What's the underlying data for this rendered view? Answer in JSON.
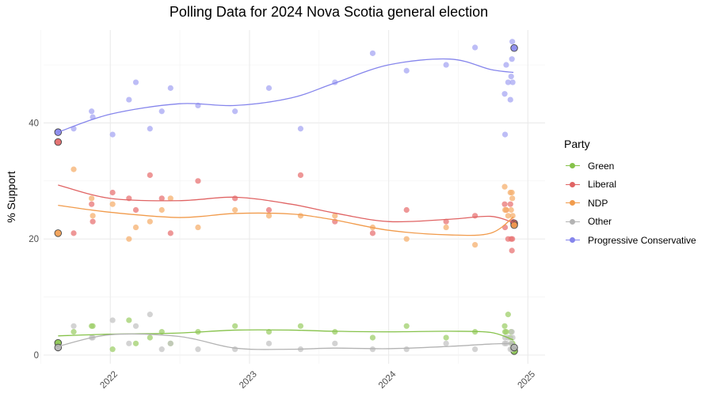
{
  "chart_data": {
    "type": "scatter",
    "title": "Polling Data for 2024 Nova Scotia general election",
    "xlabel": "",
    "ylabel": "% Support",
    "xlim": [
      "2021-07-10",
      "2025-02-15"
    ],
    "ylim": [
      -1.5,
      56
    ],
    "x_ticks": [
      "2022",
      "2023",
      "2024",
      "2025"
    ],
    "y_ticks": [
      0,
      20,
      40
    ],
    "grid": true,
    "legend_title": "Party",
    "legend_position": "right",
    "parties": [
      "Green",
      "Liberal",
      "NDP",
      "Other",
      "Progressive  Conservative"
    ],
    "point_colors": {
      "Green": "#9fcf6b",
      "Liberal": "#e87474",
      "NDP": "#f5b06f",
      "Other": "#c4c4c4",
      "Progressive  Conservative": "#a7a7f3"
    },
    "line_colors": {
      "Green": "#86c24a",
      "Liberal": "#e06464",
      "NDP": "#f19b4c",
      "Other": "#b3b3b3",
      "Progressive  Conservative": "#8585ec"
    },
    "polls": [
      {
        "date": "2021-08-17",
        "result": true,
        "Green": 2.1,
        "Liberal": 36.7,
        "NDP": 21.0,
        "Other": 1.3,
        "Progressive  Conservative": 38.4
      },
      {
        "date": "2021-09-27",
        "Green": 4,
        "Liberal": 21,
        "NDP": 32,
        "Other": 5,
        "Progressive  Conservative": 39
      },
      {
        "date": "2021-11-13",
        "Green": 5,
        "Liberal": 26,
        "NDP": 27,
        "Other": 3,
        "Progressive  Conservative": 42
      },
      {
        "date": "2021-11-16",
        "Green": 5,
        "Liberal": 23,
        "NDP": 24,
        "Other": 3,
        "Progressive  Conservative": 41
      },
      {
        "date": "2022-01-07",
        "Green": 1,
        "Liberal": 28,
        "NDP": 26,
        "Other": 6,
        "Progressive  Conservative": 38
      },
      {
        "date": "2022-02-19",
        "Green": 6,
        "Liberal": 27,
        "NDP": 20,
        "Other": 2,
        "Progressive  Conservative": 44
      },
      {
        "date": "2022-03-09",
        "Green": 2,
        "Liberal": 25,
        "NDP": 22,
        "Other": 5,
        "Progressive  Conservative": 47
      },
      {
        "date": "2022-04-15",
        "Green": 3,
        "Liberal": 31,
        "NDP": 23,
        "Other": 7,
        "Progressive  Conservative": 39
      },
      {
        "date": "2022-05-16",
        "Green": 4,
        "Liberal": 27,
        "NDP": 25,
        "Other": 1,
        "Progressive  Conservative": 42
      },
      {
        "date": "2022-06-08",
        "Green": 2,
        "Liberal": 21,
        "NDP": 27,
        "Other": 2,
        "Progressive  Conservative": 46
      },
      {
        "date": "2022-08-19",
        "Green": 4,
        "Liberal": 30,
        "NDP": 22,
        "Other": 1,
        "Progressive  Conservative": 43
      },
      {
        "date": "2022-11-24",
        "Green": 5,
        "Liberal": 27,
        "NDP": 25,
        "Other": 1,
        "Progressive  Conservative": 42
      },
      {
        "date": "2023-02-21",
        "Green": 4,
        "Liberal": 25,
        "NDP": 24,
        "Other": 2,
        "Progressive  Conservative": 46
      },
      {
        "date": "2023-05-15",
        "Green": 5,
        "Liberal": 31,
        "NDP": 24,
        "Other": 1,
        "Progressive  Conservative": 39
      },
      {
        "date": "2023-08-13",
        "Green": 4,
        "Liberal": 23,
        "NDP": 24,
        "Other": 2,
        "Progressive  Conservative": 47
      },
      {
        "date": "2023-11-20",
        "Green": 3,
        "Liberal": 21,
        "NDP": 22,
        "Other": 1,
        "Progressive  Conservative": 52
      },
      {
        "date": "2024-02-17",
        "Green": 5,
        "Liberal": 25,
        "NDP": 20,
        "Other": 1,
        "Progressive  Conservative": 49
      },
      {
        "date": "2024-05-31",
        "Green": 3,
        "Liberal": 23,
        "NDP": 22,
        "Other": 2,
        "Progressive  Conservative": 50
      },
      {
        "date": "2024-08-15",
        "Green": 4,
        "Liberal": 24,
        "NDP": 19,
        "Other": 1,
        "Progressive  Conservative": 53
      },
      {
        "date": "2024-11-01",
        "Green": 5,
        "Liberal": 26,
        "NDP": 29,
        "Other": 2,
        "Progressive  Conservative": 45
      },
      {
        "date": "2024-11-02",
        "Green": 4,
        "Liberal": 22,
        "NDP": 25,
        "Other": 3,
        "Progressive  Conservative": 38
      },
      {
        "date": "2024-11-05",
        "Green": 4,
        "Liberal": 25,
        "NDP": 25,
        "Other": 2,
        "Progressive  Conservative": 50
      },
      {
        "date": "2024-11-10",
        "Green": 7,
        "Liberal": 20,
        "NDP": 24,
        "Other": 3,
        "Progressive  Conservative": 47
      },
      {
        "date": "2024-11-16",
        "Green": 3,
        "Liberal": 26,
        "NDP": 28,
        "Other": 1,
        "Progressive  Conservative": 44
      },
      {
        "date": "2024-11-18",
        "Green": 4,
        "Liberal": 20,
        "NDP": 25,
        "Other": 2,
        "Progressive  Conservative": 48
      },
      {
        "date": "2024-11-20",
        "Green": 2,
        "Liberal": 18,
        "NDP": 28,
        "Other": 4,
        "Progressive  Conservative": 51
      },
      {
        "date": "2024-11-21",
        "Green": 1,
        "Liberal": 20,
        "NDP": 27,
        "Other": 1,
        "Progressive  Conservative": 54
      },
      {
        "date": "2024-11-22",
        "Green": 2,
        "Liberal": 23,
        "NDP": 24,
        "Other": 3,
        "Progressive  Conservative": 47
      },
      {
        "date": "2024-11-26",
        "result": true,
        "Green": 0.7,
        "Liberal": 22.7,
        "NDP": 22.4,
        "Other": 1.3,
        "Progressive  Conservative": 52.9
      }
    ],
    "trends": {
      "dates": [
        "2021-08-17",
        "2022-01-01",
        "2022-07-01",
        "2022-11-24",
        "2023-04-20",
        "2023-08-10",
        "2024-01-01",
        "2024-06-10",
        "2024-09-25",
        "2024-11-24"
      ],
      "Green": [
        3.3,
        3.6,
        3.8,
        4.3,
        4.3,
        4.1,
        4.0,
        4.1,
        3.9,
        2.6
      ],
      "Liberal": [
        29.3,
        27.0,
        26.6,
        27.2,
        26.0,
        24.5,
        23.0,
        23.4,
        23.9,
        22.8
      ],
      "NDP": [
        25.8,
        24.6,
        23.7,
        24.4,
        24.3,
        23.3,
        21.5,
        20.7,
        21.0,
        23.8
      ],
      "Other": [
        1.5,
        3.5,
        3.2,
        1.2,
        1.0,
        1.2,
        1.1,
        1.5,
        1.9,
        2.0
      ],
      "Progressive  Conservative": [
        38.4,
        41.5,
        43.3,
        43.0,
        44.3,
        46.8,
        50.0,
        51.0,
        49.2,
        48.7
      ]
    }
  }
}
